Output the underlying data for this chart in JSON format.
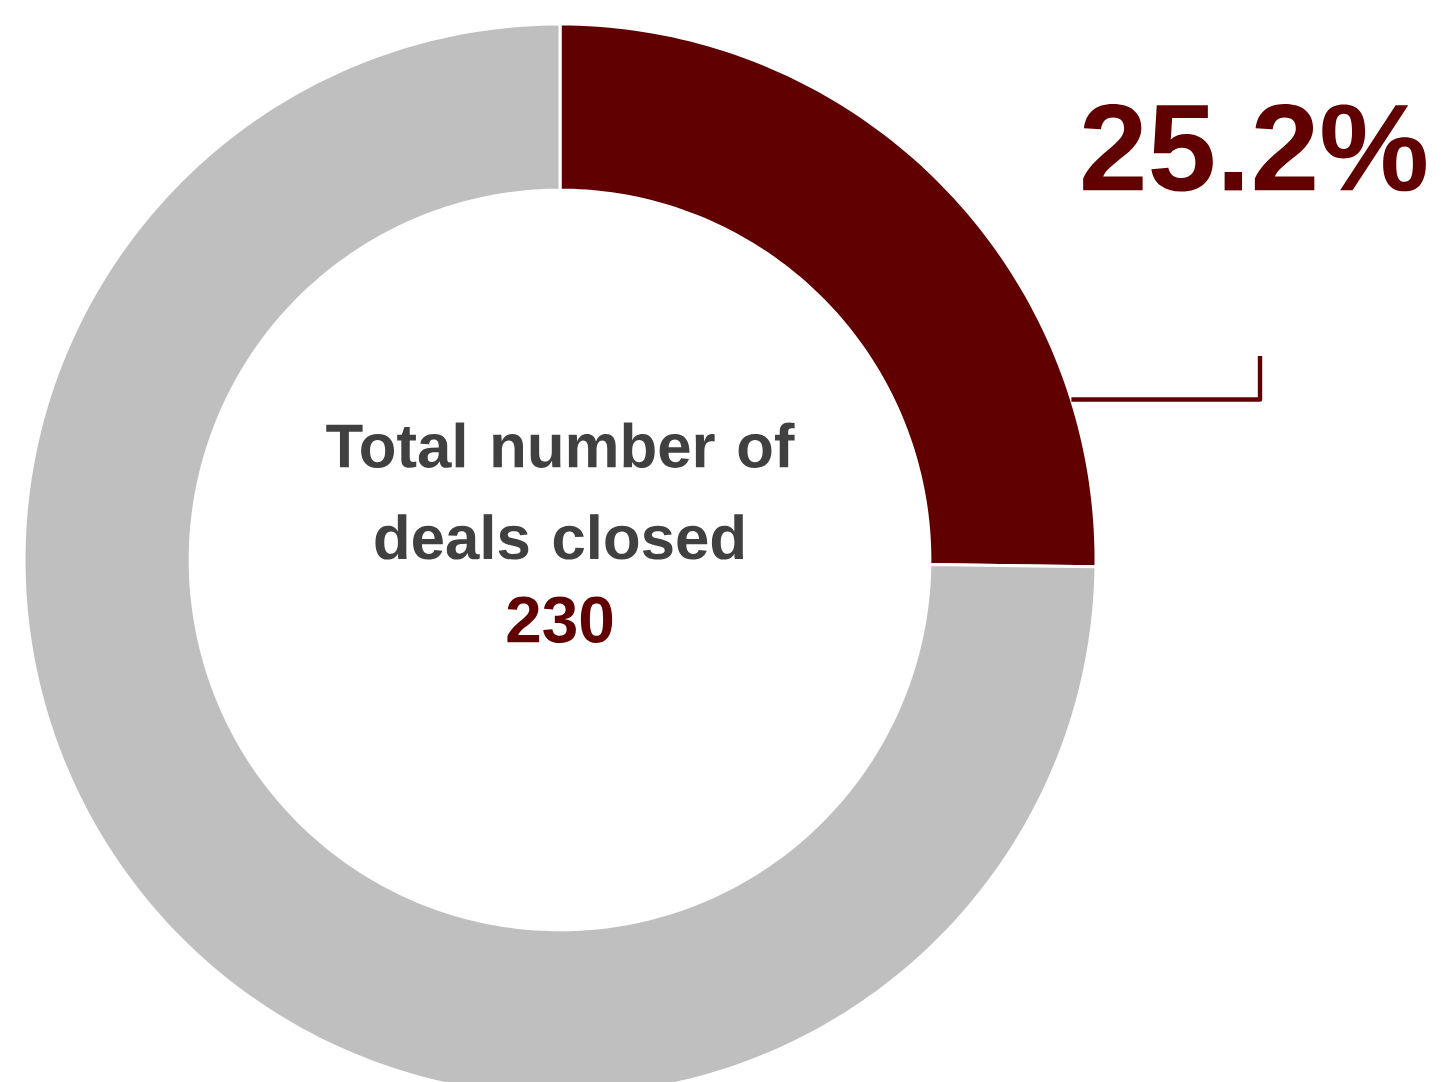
{
  "chart_data": {
    "type": "donut",
    "categories": [
      null,
      null
    ],
    "values": [
      25.2,
      74.8
    ],
    "colors": [
      "#600000",
      "#bfbfbf"
    ],
    "value_labels": [
      "25.2%",
      null
    ],
    "annotations": [
      "Total number of deals closed",
      "230"
    ]
  }
}
